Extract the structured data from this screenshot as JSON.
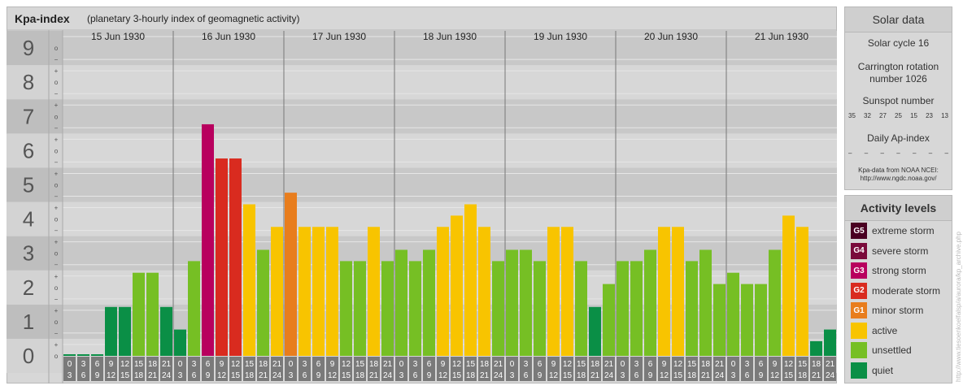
{
  "header": {
    "title": "Kpa-index",
    "subtitle": "(planetary 3-hourly index of geomagnetic activity)"
  },
  "chart_data": {
    "type": "bar",
    "title": "Kpa-index",
    "subtitle": "(planetary 3-hourly index of geomagnetic activity)",
    "ylim": [
      0,
      9
    ],
    "y_major_ticks": [
      "0",
      "1",
      "2",
      "3",
      "4",
      "5",
      "6",
      "7",
      "8",
      "9"
    ],
    "y_minor_ticks": [
      "o",
      "+",
      "−"
    ],
    "days": [
      "15 Jun 1930",
      "16 Jun 1930",
      "17 Jun 1930",
      "18 Jun 1930",
      "19 Jun 1930",
      "20 Jun 1930",
      "21 Jun 1930"
    ],
    "interval_start_labels": [
      "0",
      "3",
      "6",
      "9",
      "12",
      "15",
      "18",
      "21"
    ],
    "interval_end_labels": [
      "3",
      "6",
      "9",
      "12",
      "15",
      "18",
      "21",
      "24"
    ],
    "values": [
      0,
      0,
      0,
      1.33,
      1.33,
      2.33,
      2.33,
      1.33,
      0.67,
      2.67,
      6.67,
      5.67,
      5.67,
      4.33,
      3,
      3.67,
      4.67,
      3.67,
      3.67,
      3.67,
      2.67,
      2.67,
      3.67,
      2.67,
      3,
      2.67,
      3,
      3.67,
      4,
      4.33,
      3.67,
      2.67,
      3,
      3,
      2.67,
      3.67,
      3.67,
      2.67,
      1.33,
      2,
      2.67,
      2.67,
      3,
      3.67,
      3.67,
      2.67,
      3,
      2,
      2.33,
      2,
      2,
      3,
      4,
      3.67,
      0.33,
      0.67
    ],
    "grid": true,
    "legend_position": "right"
  },
  "solar": {
    "title": "Solar data",
    "cycle": "Solar cycle 16",
    "carrington_line1": "Carrington rotation",
    "carrington_line2": "number 1026",
    "sunspot_title": "Sunspot number",
    "sunspots": [
      "35",
      "32",
      "27",
      "25",
      "15",
      "23",
      "13"
    ],
    "ap_title": "Daily Ap-index",
    "ap_values": [
      "–",
      "–",
      "–",
      "–",
      "–",
      "–",
      "–"
    ],
    "note_line1": "Kpa-data from NOAA NCEI:",
    "note_line2": "http://www.ngdc.noaa.gov/"
  },
  "activity": {
    "title": "Activity levels",
    "levels": [
      {
        "code": "G5",
        "label": "extreme storm",
        "color": "#4a0022"
      },
      {
        "code": "G4",
        "label": "severe storm",
        "color": "#7a0a3a"
      },
      {
        "code": "G3",
        "label": "strong storm",
        "color": "#b8005e"
      },
      {
        "code": "G2",
        "label": "moderate storm",
        "color": "#d92b1f"
      },
      {
        "code": "G1",
        "label": "minor storm",
        "color": "#e87d1d"
      },
      {
        "code": "",
        "label": "active",
        "color": "#f8c400"
      },
      {
        "code": "",
        "label": "unsettled",
        "color": "#76bf24"
      },
      {
        "code": "",
        "label": "quiet",
        "color": "#0a8f46"
      }
    ]
  },
  "credit": "http://www.tiesoenkoelfalsp/a/aurora/kp_archive.php"
}
